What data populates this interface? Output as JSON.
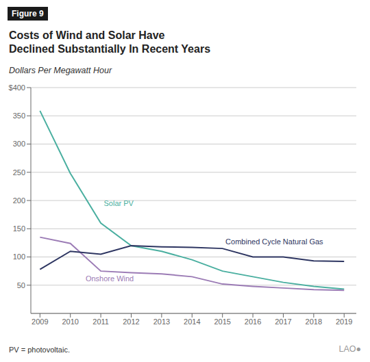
{
  "chart_data": {
    "type": "line",
    "figure_label": "Figure 9",
    "title": "Costs of Wind and Solar Have\nDeclined Substantially In Recent Years",
    "subtitle": "Dollars Per Megawatt Hour",
    "footnote": "PV = photovoltaic.",
    "logo": "LAO●",
    "x": [
      2009,
      2010,
      2011,
      2012,
      2013,
      2014,
      2015,
      2016,
      2017,
      2018,
      2019
    ],
    "xlim": [
      2008.7,
      2019.4
    ],
    "xticks": [
      2009,
      2010,
      2011,
      2012,
      2013,
      2014,
      2015,
      2016,
      2017,
      2018,
      2019
    ],
    "ylim": [
      0,
      400
    ],
    "yticks": [
      50,
      100,
      150,
      200,
      250,
      300,
      350,
      {
        "value": 400,
        "label": "$400"
      }
    ],
    "grid": true,
    "series": [
      {
        "name": "Solar PV",
        "color": "#4AAFA0",
        "values": [
          359,
          248,
          160,
          120,
          110,
          95,
          75,
          65,
          55,
          48,
          43
        ]
      },
      {
        "name": "Onshore Wind",
        "color": "#9B7BB5",
        "values": [
          135,
          124,
          75,
          72,
          70,
          65,
          52,
          48,
          45,
          42,
          41
        ]
      },
      {
        "name": "Combined Cycle Natural Gas",
        "color": "#2D3561",
        "values": [
          78,
          110,
          105,
          120,
          118,
          117,
          115,
          100,
          100,
          93,
          92
        ]
      }
    ],
    "annotations": [
      {
        "text": "Solar PV",
        "x": 2011.1,
        "y": 195,
        "color": "#4AAFA0"
      },
      {
        "text": "Onshore Wind",
        "x": 2010.5,
        "y": 62,
        "color": "#9B7BB5"
      },
      {
        "text": "Combined Cycle Natural Gas",
        "x": 2015.1,
        "y": 127,
        "color": "#2D3561"
      }
    ]
  }
}
